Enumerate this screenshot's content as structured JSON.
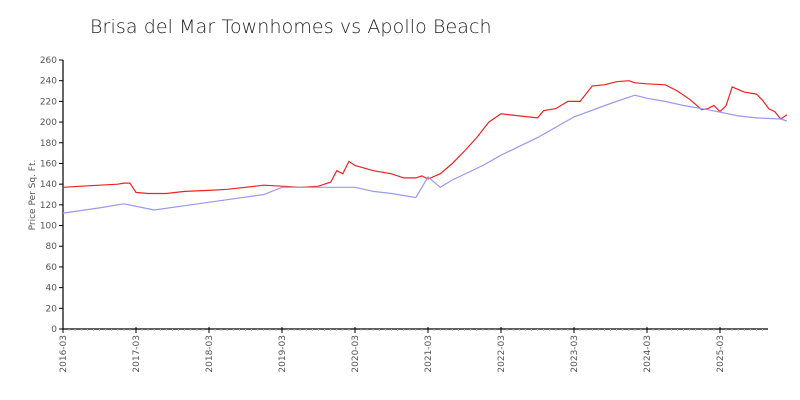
{
  "chart_data": {
    "type": "line",
    "title": "Brisa del Mar Townhomes vs Apollo Beach",
    "xlabel": "",
    "ylabel": "Price Per Sq. Ft.",
    "ylim": [
      0,
      260
    ],
    "yticks": [
      0,
      20,
      40,
      60,
      80,
      100,
      120,
      140,
      160,
      180,
      200,
      220,
      240,
      260
    ],
    "xtick_labels": [
      "2016-03",
      "2017-03",
      "2018-03",
      "2019-03",
      "2020-03",
      "2021-03",
      "2022-03",
      "2023-03",
      "2024-03",
      "2025-03"
    ],
    "grid": false,
    "legend": false,
    "series": [
      {
        "name": "Brisa del Mar Townhomes",
        "color": "#ee2222",
        "points": [
          [
            "2016-03",
            137
          ],
          [
            "2016-06",
            138
          ],
          [
            "2016-09",
            139
          ],
          [
            "2016-12",
            140
          ],
          [
            "2017-01",
            141
          ],
          [
            "2017-02",
            141
          ],
          [
            "2017-03",
            132
          ],
          [
            "2017-05",
            131
          ],
          [
            "2017-08",
            131
          ],
          [
            "2017-11",
            133
          ],
          [
            "2018-03",
            134
          ],
          [
            "2018-06",
            135
          ],
          [
            "2018-09",
            137
          ],
          [
            "2018-12",
            139
          ],
          [
            "2019-03",
            138
          ],
          [
            "2019-06",
            137
          ],
          [
            "2019-09",
            138
          ],
          [
            "2019-11",
            142
          ],
          [
            "2019-12",
            153
          ],
          [
            "2020-01",
            150
          ],
          [
            "2020-02",
            162
          ],
          [
            "2020-03",
            158
          ],
          [
            "2020-06",
            153
          ],
          [
            "2020-09",
            150
          ],
          [
            "2020-11",
            146
          ],
          [
            "2021-01",
            146
          ],
          [
            "2021-02",
            148
          ],
          [
            "2021-03",
            145
          ],
          [
            "2021-05",
            150
          ],
          [
            "2021-07",
            160
          ],
          [
            "2021-09",
            172
          ],
          [
            "2021-11",
            185
          ],
          [
            "2022-01",
            200
          ],
          [
            "2022-03",
            208
          ],
          [
            "2022-06",
            206
          ],
          [
            "2022-09",
            204
          ],
          [
            "2022-10",
            211
          ],
          [
            "2022-12",
            213
          ],
          [
            "2023-02",
            220
          ],
          [
            "2023-04",
            220
          ],
          [
            "2023-06",
            235
          ],
          [
            "2023-08",
            236
          ],
          [
            "2023-10",
            239
          ],
          [
            "2023-12",
            240
          ],
          [
            "2024-01",
            238
          ],
          [
            "2024-03",
            237
          ],
          [
            "2024-06",
            236
          ],
          [
            "2024-08",
            230
          ],
          [
            "2024-10",
            222
          ],
          [
            "2024-12",
            212
          ],
          [
            "2025-01",
            213
          ],
          [
            "2025-02",
            216
          ],
          [
            "2025-03",
            210
          ],
          [
            "2025-04",
            216
          ],
          [
            "2025-05",
            234
          ],
          [
            "2025-07",
            229
          ],
          [
            "2025-09",
            227
          ],
          [
            "2025-10",
            221
          ],
          [
            "2025-11",
            213
          ],
          [
            "2025-12",
            210
          ],
          [
            "2026-01",
            203
          ],
          [
            "2026-02",
            207
          ]
        ]
      },
      {
        "name": "Apollo Beach",
        "color": "#9999ee",
        "points": [
          [
            "2016-03",
            112
          ],
          [
            "2016-09",
            117
          ],
          [
            "2017-01",
            121
          ],
          [
            "2017-06",
            115
          ],
          [
            "2017-12",
            120
          ],
          [
            "2018-06",
            125
          ],
          [
            "2018-12",
            130
          ],
          [
            "2019-03",
            137
          ],
          [
            "2019-06",
            137
          ],
          [
            "2019-09",
            137
          ],
          [
            "2020-03",
            137
          ],
          [
            "2020-06",
            133
          ],
          [
            "2020-09",
            131
          ],
          [
            "2021-01",
            127
          ],
          [
            "2021-03",
            147
          ],
          [
            "2021-05",
            137
          ],
          [
            "2021-07",
            144
          ],
          [
            "2021-12",
            158
          ],
          [
            "2022-03",
            168
          ],
          [
            "2022-09",
            185
          ],
          [
            "2023-03",
            205
          ],
          [
            "2023-09",
            218
          ],
          [
            "2024-01",
            226
          ],
          [
            "2024-03",
            223
          ],
          [
            "2024-06",
            220
          ],
          [
            "2024-09",
            216
          ],
          [
            "2025-01",
            212
          ],
          [
            "2025-06",
            206
          ],
          [
            "2025-09",
            204
          ],
          [
            "2026-01",
            203
          ],
          [
            "2026-02",
            201
          ]
        ]
      }
    ]
  }
}
